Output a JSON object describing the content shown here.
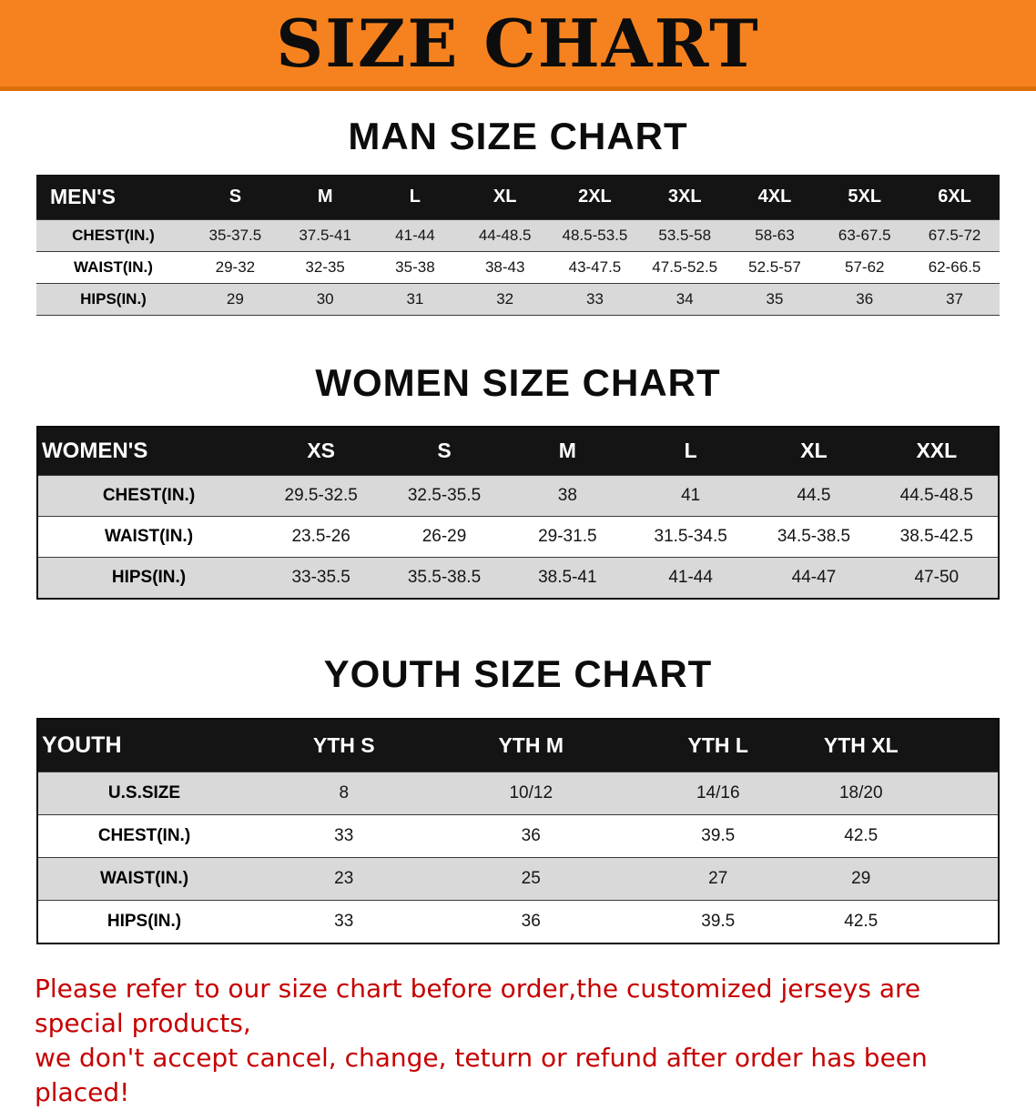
{
  "banner": {
    "title": "SIZE CHART",
    "background": "#F5821E"
  },
  "men": {
    "heading": "MAN SIZE CHART",
    "header": [
      "MEN'S",
      "S",
      "M",
      "L",
      "XL",
      "2XL",
      "3XL",
      "4XL",
      "5XL",
      "6XL"
    ],
    "rows": [
      [
        "CHEST(IN.)",
        "35-37.5",
        "37.5-41",
        "41-44",
        "44-48.5",
        "48.5-53.5",
        "53.5-58",
        "58-63",
        "63-67.5",
        "67.5-72"
      ],
      [
        "WAIST(IN.)",
        "29-32",
        "32-35",
        "35-38",
        "38-43",
        "43-47.5",
        "47.5-52.5",
        "52.5-57",
        "57-62",
        "62-66.5"
      ],
      [
        "HIPS(IN.)",
        "29",
        "30",
        "31",
        "32",
        "33",
        "34",
        "35",
        "36",
        "37"
      ]
    ]
  },
  "women": {
    "heading": "WOMEN SIZE CHART",
    "header": [
      "WOMEN'S",
      "XS",
      "S",
      "M",
      "L",
      "XL",
      "XXL"
    ],
    "rows": [
      [
        "CHEST(IN.)",
        "29.5-32.5",
        "32.5-35.5",
        "38",
        "41",
        "44.5",
        "44.5-48.5"
      ],
      [
        "WAIST(IN.)",
        "23.5-26",
        "26-29",
        "29-31.5",
        "31.5-34.5",
        "34.5-38.5",
        "38.5-42.5"
      ],
      [
        "HIPS(IN.)",
        "33-35.5",
        "35.5-38.5",
        "38.5-41",
        "41-44",
        "44-47",
        "47-50"
      ]
    ]
  },
  "youth": {
    "heading": "YOUTH SIZE CHART",
    "header": [
      "YOUTH",
      "YTH S",
      "YTH M",
      "YTH L",
      "YTH XL"
    ],
    "rows": [
      [
        "U.S.SIZE",
        "8",
        "10/12",
        "14/16",
        "18/20"
      ],
      [
        "CHEST(IN.)",
        "33",
        "36",
        "39.5",
        "42.5"
      ],
      [
        "WAIST(IN.)",
        "23",
        "25",
        "27",
        "29"
      ],
      [
        "HIPS(IN.)",
        "33",
        "36",
        "39.5",
        "42.5"
      ]
    ]
  },
  "disclaimer": {
    "line1": "Please refer to our size chart before order,the customized jerseys are special products,",
    "line2": "we don't accept cancel, change, teturn or refund after order has been placed!",
    "color": "#C60000"
  },
  "colors": {
    "banner_orange": "#F5821E",
    "banner_edge": "#DD6F08",
    "header_black": "#141414",
    "row_gray": "#D9D9D9",
    "text_black": "#111111"
  }
}
